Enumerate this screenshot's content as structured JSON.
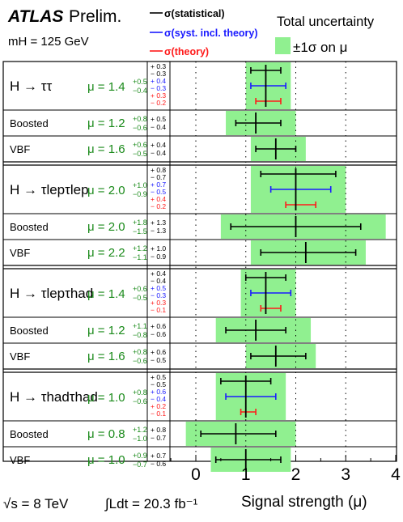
{
  "header": {
    "experiment": "ATLAS",
    "status": "Prelim.",
    "mass_label": "mH = 125 GeV",
    "legend": [
      {
        "label": "σ(statistical)",
        "color": "#000000"
      },
      {
        "label": "σ(syst. incl. theory)",
        "color": "#1a1aff"
      },
      {
        "label": "σ(theory)",
        "color": "#ff1a1a"
      }
    ],
    "total_label": "Total uncertainty",
    "sigma_label": "±1σ on μ"
  },
  "footer": {
    "energy": "√s = 8 TeV",
    "lumi": "∫Ldt = 20.3 fb⁻¹"
  },
  "chart_data": {
    "type": "error-bar",
    "xlabel": "Signal strength (μ)",
    "xlim": [
      -0.5,
      4
    ],
    "xticks": [
      0,
      1,
      2,
      3,
      4
    ],
    "colors": {
      "band": "#90f090",
      "statistical": "#000000",
      "systematic": "#1a1aff",
      "theory": "#ff1a1a"
    },
    "rows": [
      {
        "label": "H → ττ",
        "kind": "main",
        "mu": 1.4,
        "total_up": 0.5,
        "total_down": 0.4,
        "stat_up": 0.3,
        "stat_down": 0.3,
        "syst_up": 0.4,
        "syst_down": 0.3,
        "theory_up": 0.3,
        "theory_down": 0.2
      },
      {
        "label": "Boosted",
        "kind": "sub",
        "mu": 1.2,
        "total_up": 0.8,
        "total_down": 0.6,
        "stat_up": 0.5,
        "stat_down": 0.4
      },
      {
        "label": "VBF",
        "kind": "sub",
        "mu": 1.6,
        "total_up": 0.6,
        "total_down": 0.5,
        "stat_up": 0.4,
        "stat_down": 0.4
      },
      {
        "label": "H → τlepτlep",
        "kind": "main",
        "mu": 2.0,
        "total_up": 1.0,
        "total_down": 0.9,
        "stat_up": 0.8,
        "stat_down": 0.7,
        "syst_up": 0.7,
        "syst_down": 0.5,
        "theory_up": 0.4,
        "theory_down": 0.2
      },
      {
        "label": "Boosted",
        "kind": "sub",
        "mu": 2.0,
        "total_up": 1.8,
        "total_down": 1.5,
        "stat_up": 1.3,
        "stat_down": 1.3
      },
      {
        "label": "VBF",
        "kind": "sub",
        "mu": 2.2,
        "total_up": 1.2,
        "total_down": 1.1,
        "stat_up": 1.0,
        "stat_down": 0.9
      },
      {
        "label": "H → τlepτhad",
        "kind": "main",
        "mu": 1.4,
        "total_up": 0.6,
        "total_down": 0.5,
        "stat_up": 0.4,
        "stat_down": 0.4,
        "syst_up": 0.5,
        "syst_down": 0.3,
        "theory_up": 0.3,
        "theory_down": 0.1
      },
      {
        "label": "Boosted",
        "kind": "sub",
        "mu": 1.2,
        "total_up": 1.1,
        "total_down": 0.8,
        "stat_up": 0.6,
        "stat_down": 0.6
      },
      {
        "label": "VBF",
        "kind": "sub",
        "mu": 1.6,
        "total_up": 0.8,
        "total_down": 0.6,
        "stat_up": 0.6,
        "stat_down": 0.5
      },
      {
        "label": "H → τhadτhad",
        "kind": "main",
        "mu": 1.0,
        "total_up": 0.8,
        "total_down": 0.6,
        "stat_up": 0.5,
        "stat_down": 0.5,
        "syst_up": 0.6,
        "syst_down": 0.4,
        "theory_up": 0.2,
        "theory_down": 0.1
      },
      {
        "label": "Boosted",
        "kind": "sub",
        "mu": 0.8,
        "total_up": 1.2,
        "total_down": 1.0,
        "stat_up": 0.8,
        "stat_down": 0.7
      },
      {
        "label": "VBF",
        "kind": "sub",
        "mu": 1.0,
        "total_up": 0.9,
        "total_down": 0.7,
        "stat_up": 0.7,
        "stat_down": 0.6
      }
    ]
  }
}
